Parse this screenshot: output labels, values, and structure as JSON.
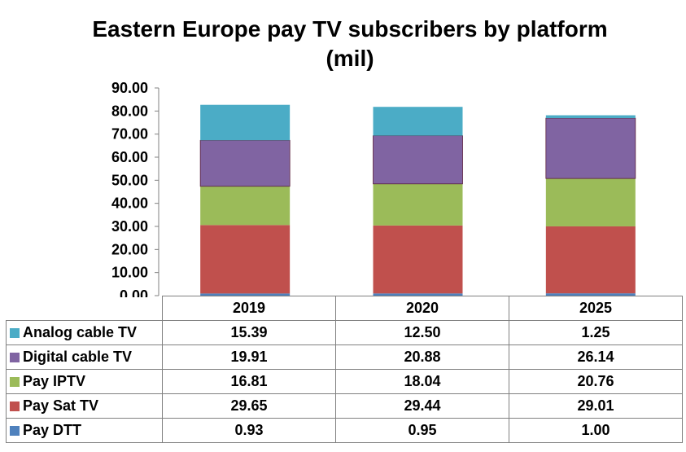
{
  "chart_data": {
    "type": "bar",
    "stacked": true,
    "title": "Eastern Europe pay TV subscribers by platform (mil)",
    "title_lines": [
      "Eastern Europe pay TV subscribers by platform",
      "(mil)"
    ],
    "categories": [
      "2019",
      "2020",
      "2025"
    ],
    "ylim": [
      0,
      90
    ],
    "ytick_step": 10,
    "ytick_labels": [
      "0.00",
      "10.00",
      "20.00",
      "30.00",
      "40.00",
      "50.00",
      "60.00",
      "70.00",
      "80.00",
      "90.00"
    ],
    "grid": false,
    "legend": "data-table",
    "series": [
      {
        "name": "Pay DTT",
        "color": "#4f81bd",
        "values": [
          0.93,
          0.95,
          1.0
        ],
        "labels": [
          "0.93",
          "0.95",
          "1.00"
        ]
      },
      {
        "name": "Pay Sat TV",
        "color": "#c0504d",
        "values": [
          29.65,
          29.44,
          29.01
        ],
        "labels": [
          "29.65",
          "29.44",
          "29.01"
        ]
      },
      {
        "name": "Pay IPTV",
        "color": "#9bbb59",
        "values": [
          16.81,
          18.04,
          20.76
        ],
        "labels": [
          "16.81",
          "18.04",
          "20.76"
        ]
      },
      {
        "name": "Digital cable TV",
        "color": "#8064a2",
        "values": [
          19.91,
          20.88,
          26.14
        ],
        "labels": [
          "19.91",
          "20.88",
          "26.14"
        ]
      },
      {
        "name": "Analog cable TV",
        "color": "#4bacc6",
        "values": [
          15.39,
          12.5,
          1.25
        ],
        "labels": [
          "15.39",
          "12.50",
          "1.25"
        ]
      }
    ]
  }
}
